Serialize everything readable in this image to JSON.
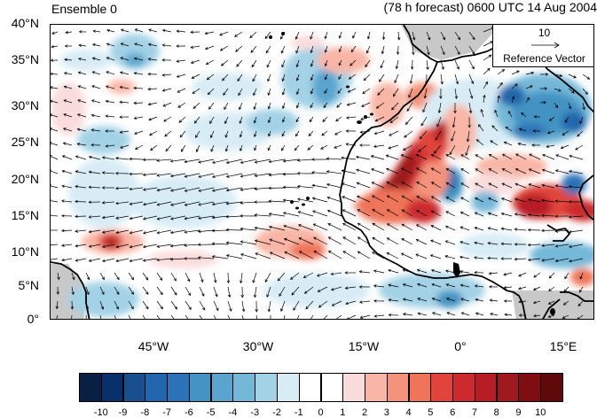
{
  "title": {
    "left": "Ensemble 0",
    "right": "(78 h forecast) 0600 UTC 14 Aug 2004"
  },
  "map": {
    "lat_labels": [
      "40°N",
      "35°N",
      "30°N",
      "25°N",
      "20°N",
      "15°N",
      "10°N",
      "5°N",
      "0°"
    ],
    "lon_labels": [
      "45°W",
      "30°W",
      "15°W",
      "0°",
      "15°E"
    ],
    "land_color": "#c8c8c8",
    "extent": {
      "lon_min": -57,
      "lon_max": 20,
      "lat_min": 0,
      "lat_max": 40
    }
  },
  "reference_vector": {
    "magnitude": "10",
    "label": "Reference Vector"
  },
  "colorbar": {
    "labels": [
      "-10",
      "-9",
      "-8",
      "-7",
      "-6",
      "-5",
      "-4",
      "-3",
      "-2",
      "-1",
      "0",
      "1",
      "2",
      "3",
      "4",
      "5",
      "6",
      "7",
      "8",
      "9",
      "10"
    ],
    "colors": [
      "#0a1f44",
      "#08306b",
      "#1a4f8f",
      "#2166ac",
      "#2c72b8",
      "#4393c3",
      "#5aa5cf",
      "#74b8d8",
      "#a3d2e6",
      "#d8ecf6",
      "#ffffff",
      "#ffffff",
      "#fbdcdc",
      "#f9b6a6",
      "#f4937b",
      "#ef7459",
      "#e0443a",
      "#cc2a2f",
      "#b81d26",
      "#9f1a1f",
      "#7f0d12",
      "#5e0a0a"
    ]
  }
}
